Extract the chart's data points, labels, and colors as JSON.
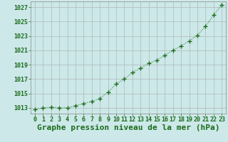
{
  "x": [
    0,
    1,
    2,
    3,
    4,
    5,
    6,
    7,
    8,
    9,
    10,
    11,
    12,
    13,
    14,
    15,
    16,
    17,
    18,
    19,
    20,
    21,
    22,
    23
  ],
  "y": [
    1012.8,
    1013.0,
    1013.1,
    1013.0,
    1013.0,
    1013.3,
    1013.6,
    1013.9,
    1014.3,
    1015.2,
    1016.3,
    1017.0,
    1017.9,
    1018.5,
    1019.2,
    1019.6,
    1020.3,
    1021.0,
    1021.6,
    1022.3,
    1023.1,
    1024.3,
    1025.9,
    1027.3
  ],
  "line_color": "#1a6b1a",
  "marker_color": "#1a6b1a",
  "bg_color": "#cce8e8",
  "grid_color": "#b0b8b8",
  "xlabel": "Graphe pression niveau de la mer (hPa)",
  "xlabel_color": "#1a6b1a",
  "ylabel_ticks": [
    1013,
    1015,
    1017,
    1019,
    1021,
    1023,
    1025,
    1027
  ],
  "ymin": 1012.2,
  "ymax": 1027.8,
  "xmin": -0.5,
  "xmax": 23.5,
  "tick_label_color": "#1a6b1a",
  "tick_fontsize": 6,
  "xlabel_fontsize": 8
}
